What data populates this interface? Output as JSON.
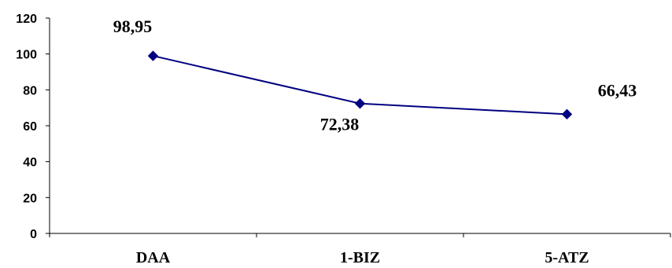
{
  "chart_data": {
    "type": "line",
    "categories": [
      "DAA",
      "1-BIZ",
      "5-ATZ"
    ],
    "series": [
      {
        "values": [
          98.95,
          72.38,
          66.43
        ],
        "data_labels": [
          "98,95",
          "72,38",
          "66,43"
        ],
        "color": "#000080"
      }
    ],
    "yticks": [
      "0",
      "20",
      "40",
      "60",
      "80",
      "100",
      "120"
    ],
    "ylim": [
      0,
      120
    ],
    "title": "",
    "xlabel": "",
    "ylabel": "",
    "grid": false,
    "legend": "none"
  }
}
